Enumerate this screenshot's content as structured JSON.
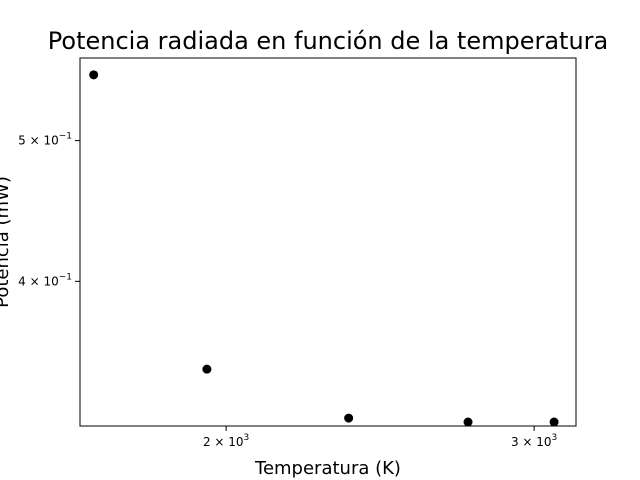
{
  "chart_data": {
    "type": "scatter",
    "title": "Potencia radiada en función de la temperatura",
    "xlabel": "Temperatura (K)",
    "ylabel": "Potencia (mW)",
    "xscale": "log",
    "yscale": "log",
    "xlim": [
      1650,
      3170
    ],
    "ylim": [
      0.318,
      0.57
    ],
    "grid": false,
    "marker_color": "#000000",
    "x_ticks": [
      {
        "value": 2000,
        "label": "2 × 10",
        "exp": "3"
      },
      {
        "value": 3000,
        "label": "3 × 10",
        "exp": "3"
      }
    ],
    "y_ticks": [
      {
        "value": 0.4,
        "label": "4 × 10",
        "exp": "−1"
      },
      {
        "value": 0.5,
        "label": "5 × 10",
        "exp": "−1"
      }
    ],
    "series": [
      {
        "x": [
          1680,
          1950,
          2350,
          2750,
          3080
        ],
        "y": [
          0.555,
          0.348,
          0.322,
          0.32,
          0.32
        ]
      }
    ]
  }
}
